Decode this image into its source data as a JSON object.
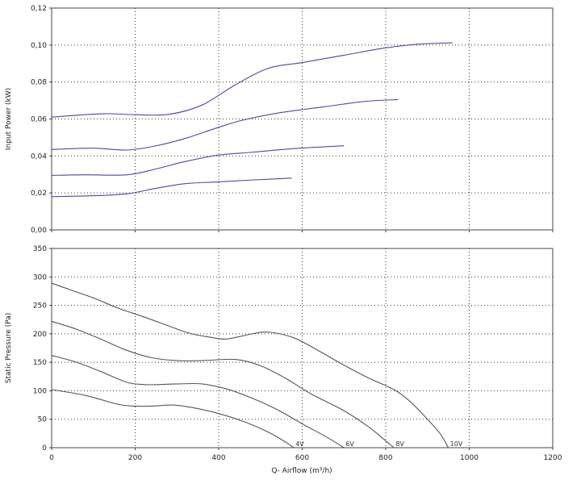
{
  "chart_data": [
    {
      "type": "line",
      "ylabel": "Input Power (kW)",
      "xlabel": "",
      "xlim": [
        0,
        1200
      ],
      "ylim": [
        0,
        0.12
      ],
      "x_ticks": [
        0,
        200,
        400,
        600,
        800,
        1000,
        1200
      ],
      "y_ticks": [
        0,
        0.02,
        0.04,
        0.06,
        0.08,
        0.1,
        0.12
      ],
      "y_tick_labels": [
        "0,00",
        "0,02",
        "0,04",
        "0,06",
        "0,08",
        "0,10",
        "0,12"
      ],
      "x_tick_labels": [],
      "grid": true,
      "line_color": "#4a4aa0",
      "series": [
        {
          "points": [
            [
              0,
              0.018
            ],
            [
              100,
              0.0185
            ],
            [
              180,
              0.0195
            ],
            [
              250,
              0.0225
            ],
            [
              320,
              0.025
            ],
            [
              400,
              0.026
            ],
            [
              480,
              0.027
            ],
            [
              575,
              0.028
            ]
          ]
        },
        {
          "points": [
            [
              0,
              0.0295
            ],
            [
              80,
              0.0298
            ],
            [
              180,
              0.0298
            ],
            [
              250,
              0.033
            ],
            [
              320,
              0.037
            ],
            [
              400,
              0.0405
            ],
            [
              480,
              0.042
            ],
            [
              580,
              0.044
            ],
            [
              700,
              0.0455
            ]
          ]
        },
        {
          "points": [
            [
              0,
              0.0435
            ],
            [
              100,
              0.0442
            ],
            [
              180,
              0.0432
            ],
            [
              250,
              0.0455
            ],
            [
              320,
              0.0495
            ],
            [
              400,
              0.0555
            ],
            [
              460,
              0.0595
            ],
            [
              550,
              0.0635
            ],
            [
              650,
              0.0665
            ],
            [
              750,
              0.0695
            ],
            [
              830,
              0.0705
            ]
          ]
        },
        {
          "points": [
            [
              0,
              0.061
            ],
            [
              120,
              0.0628
            ],
            [
              200,
              0.0623
            ],
            [
              280,
              0.0625
            ],
            [
              360,
              0.0675
            ],
            [
              440,
              0.0785
            ],
            [
              520,
              0.0875
            ],
            [
              600,
              0.0905
            ],
            [
              700,
              0.0945
            ],
            [
              800,
              0.0985
            ],
            [
              880,
              0.1005
            ],
            [
              960,
              0.1012
            ]
          ]
        }
      ]
    },
    {
      "type": "line",
      "ylabel": "Static Pressure (Pa)",
      "xlabel": "Q- Airflow (m³/h)",
      "xlim": [
        0,
        1200
      ],
      "ylim": [
        0,
        350
      ],
      "x_ticks": [
        0,
        200,
        400,
        600,
        800,
        1000,
        1200
      ],
      "x_tick_labels": [
        "0",
        "200",
        "400",
        "600",
        "800",
        "1000",
        "1200"
      ],
      "y_ticks": [
        0,
        50,
        100,
        150,
        200,
        250,
        300,
        350
      ],
      "y_tick_labels": [
        "0",
        "50",
        "100",
        "150",
        "200",
        "250",
        "300",
        "350"
      ],
      "grid": true,
      "line_color": "#555555",
      "series": [
        {
          "name": "4V",
          "points": [
            [
              0,
              102
            ],
            [
              80,
              92
            ],
            [
              160,
              76
            ],
            [
              200,
              73
            ],
            [
              240,
              73
            ],
            [
              290,
              75
            ],
            [
              340,
              70
            ],
            [
              400,
              60
            ],
            [
              460,
              46
            ],
            [
              520,
              27
            ],
            [
              560,
              10
            ],
            [
              580,
              0
            ]
          ]
        },
        {
          "name": "6V",
          "points": [
            [
              0,
              162
            ],
            [
              60,
              150
            ],
            [
              120,
              133
            ],
            [
              180,
              115
            ],
            [
              220,
              111
            ],
            [
              260,
              111
            ],
            [
              300,
              112
            ],
            [
              360,
              112
            ],
            [
              420,
              103
            ],
            [
              480,
              87
            ],
            [
              540,
              67
            ],
            [
              600,
              42
            ],
            [
              660,
              18
            ],
            [
              700,
              0
            ]
          ]
        },
        {
          "name": "8V",
          "points": [
            [
              0,
              222
            ],
            [
              60,
              208
            ],
            [
              120,
              190
            ],
            [
              180,
              171
            ],
            [
              240,
              158
            ],
            [
              300,
              153
            ],
            [
              360,
              153
            ],
            [
              440,
              155
            ],
            [
              500,
              144
            ],
            [
              560,
              122
            ],
            [
              620,
              95
            ],
            [
              700,
              65
            ],
            [
              760,
              36
            ],
            [
              800,
              12
            ],
            [
              820,
              0
            ]
          ]
        },
        {
          "name": "10V",
          "points": [
            [
              0,
              289
            ],
            [
              50,
              276
            ],
            [
              100,
              263
            ],
            [
              160,
              245
            ],
            [
              220,
              230
            ],
            [
              280,
              214
            ],
            [
              330,
              201
            ],
            [
              380,
              194
            ],
            [
              420,
              191
            ],
            [
              480,
              200
            ],
            [
              520,
              203
            ],
            [
              580,
              193
            ],
            [
              640,
              170
            ],
            [
              700,
              145
            ],
            [
              760,
              122
            ],
            [
              820,
              102
            ],
            [
              860,
              80
            ],
            [
              900,
              50
            ],
            [
              930,
              25
            ],
            [
              950,
              0
            ]
          ]
        }
      ]
    }
  ]
}
